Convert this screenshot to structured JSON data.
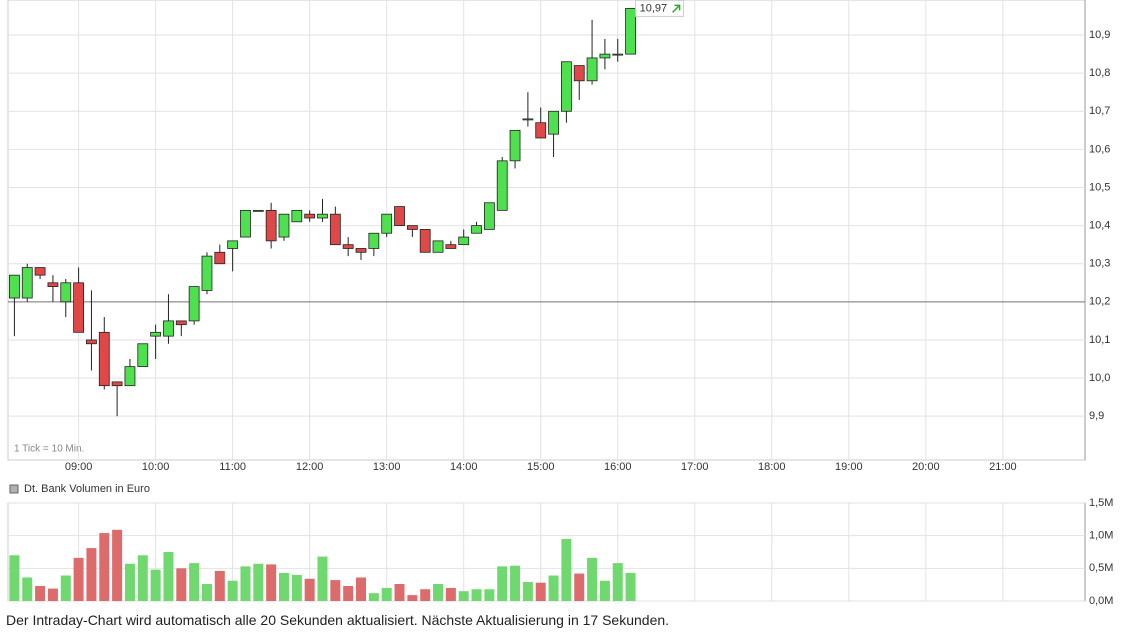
{
  "chart_data": [
    {
      "type": "candlestick",
      "annotation": "1 Tick = 10 Min.",
      "up_color": "#4ee04e",
      "down_color": "#e04848",
      "x": [
        490,
        500,
        510,
        520,
        530,
        540,
        550,
        560,
        570,
        580,
        590,
        600,
        610,
        620,
        630,
        640,
        650,
        660,
        670,
        680,
        690,
        700,
        710,
        720,
        730,
        740,
        750,
        760,
        770,
        780,
        790,
        800,
        810,
        820,
        830,
        840,
        850,
        860,
        870,
        880,
        890,
        900,
        910,
        920,
        930,
        940,
        950,
        960,
        970
      ],
      "open": [
        10.21,
        10.21,
        10.29,
        10.25,
        10.2,
        10.25,
        10.1,
        10.12,
        9.99,
        9.98,
        10.03,
        10.11,
        10.11,
        10.15,
        10.15,
        10.23,
        10.33,
        10.34,
        10.37,
        10.44,
        10.44,
        10.37,
        10.41,
        10.43,
        10.42,
        10.43,
        10.35,
        10.34,
        10.34,
        10.38,
        10.45,
        10.4,
        10.39,
        10.33,
        10.35,
        10.35,
        10.38,
        10.39,
        10.44,
        10.57,
        10.68,
        10.67,
        10.64,
        10.7,
        10.82,
        10.78,
        10.84,
        10.85,
        10.85
      ],
      "high": [
        10.27,
        10.3,
        10.29,
        10.27,
        10.26,
        10.29,
        10.23,
        10.16,
        9.99,
        10.05,
        10.09,
        10.14,
        10.22,
        10.15,
        10.24,
        10.33,
        10.35,
        10.36,
        10.44,
        10.44,
        10.46,
        10.43,
        10.44,
        10.44,
        10.47,
        10.45,
        10.37,
        10.34,
        10.38,
        10.43,
        10.45,
        10.4,
        10.39,
        10.36,
        10.36,
        10.39,
        10.41,
        10.46,
        10.58,
        10.65,
        10.75,
        10.71,
        10.7,
        10.83,
        10.82,
        10.94,
        10.89,
        10.89,
        10.97
      ],
      "low": [
        10.11,
        10.2,
        10.26,
        10.2,
        10.16,
        10.12,
        10.02,
        9.97,
        9.9,
        9.98,
        10.03,
        10.05,
        10.09,
        10.11,
        10.14,
        10.22,
        10.3,
        10.28,
        10.37,
        10.44,
        10.34,
        10.36,
        10.41,
        10.41,
        10.41,
        10.35,
        10.32,
        10.31,
        10.32,
        10.37,
        10.4,
        10.37,
        10.33,
        10.33,
        10.34,
        10.35,
        10.38,
        10.39,
        10.44,
        10.55,
        10.66,
        10.63,
        10.58,
        10.67,
        10.73,
        10.77,
        10.81,
        10.83,
        10.85
      ],
      "close": [
        10.27,
        10.29,
        10.27,
        10.24,
        10.25,
        10.12,
        10.09,
        9.98,
        9.98,
        10.03,
        10.09,
        10.12,
        10.15,
        10.14,
        10.24,
        10.32,
        10.3,
        10.36,
        10.44,
        10.44,
        10.36,
        10.43,
        10.44,
        10.42,
        10.43,
        10.35,
        10.34,
        10.33,
        10.38,
        10.43,
        10.4,
        10.39,
        10.33,
        10.36,
        10.34,
        10.37,
        10.4,
        10.46,
        10.57,
        10.65,
        10.68,
        10.63,
        10.7,
        10.83,
        10.78,
        10.84,
        10.85,
        10.85,
        10.97
      ],
      "last_price": {
        "value": 10.97,
        "label": "10,97"
      },
      "reference_line": 10.2,
      "xlim": [
        485,
        1324
      ],
      "xticks": [
        {
          "value": 540,
          "label": "09:00"
        },
        {
          "value": 600,
          "label": "10:00"
        },
        {
          "value": 660,
          "label": "11:00"
        },
        {
          "value": 720,
          "label": "12:00"
        },
        {
          "value": 780,
          "label": "13:00"
        },
        {
          "value": 840,
          "label": "14:00"
        },
        {
          "value": 900,
          "label": "15:00"
        },
        {
          "value": 960,
          "label": "16:00"
        },
        {
          "value": 1020,
          "label": "17:00"
        },
        {
          "value": 1080,
          "label": "18:00"
        },
        {
          "value": 1140,
          "label": "19:00"
        },
        {
          "value": 1200,
          "label": "20:00"
        },
        {
          "value": 1260,
          "label": "21:00"
        }
      ],
      "ylim": [
        9.785,
        10.992
      ],
      "yticks": [
        {
          "value": 9.9,
          "label": "9,9"
        },
        {
          "value": 10.0,
          "label": "10,0"
        },
        {
          "value": 10.1,
          "label": "10,1"
        },
        {
          "value": 10.2,
          "label": "10,2"
        },
        {
          "value": 10.3,
          "label": "10,3"
        },
        {
          "value": 10.4,
          "label": "10,4"
        },
        {
          "value": 10.5,
          "label": "10,5"
        },
        {
          "value": 10.6,
          "label": "10,6"
        },
        {
          "value": 10.7,
          "label": "10,7"
        },
        {
          "value": 10.8,
          "label": "10,8"
        },
        {
          "value": 10.9,
          "label": "10,9"
        }
      ],
      "grid": true
    },
    {
      "type": "bar",
      "name": "Dt. Bank Volumen in Euro",
      "legend_color": "#b0b0b0",
      "values": [
        0.7,
        0.36,
        0.23,
        0.19,
        0.39,
        0.66,
        0.81,
        1.04,
        1.09,
        0.57,
        0.7,
        0.48,
        0.75,
        0.5,
        0.58,
        0.26,
        0.46,
        0.31,
        0.53,
        0.57,
        0.56,
        0.43,
        0.4,
        0.34,
        0.68,
        0.32,
        0.23,
        0.36,
        0.12,
        0.2,
        0.26,
        0.09,
        0.18,
        0.26,
        0.2,
        0.15,
        0.18,
        0.18,
        0.53,
        0.54,
        0.29,
        0.28,
        0.39,
        0.95,
        0.42,
        0.66,
        0.31,
        0.58,
        0.43
      ],
      "ylim": [
        0,
        1.5
      ],
      "yticks": [
        {
          "value": 0,
          "label": "0,0M"
        },
        {
          "value": 0.5,
          "label": "0,5M"
        },
        {
          "value": 1.0,
          "label": "1,0M"
        },
        {
          "value": 1.5,
          "label": "1,5M"
        }
      ],
      "grid": true
    }
  ],
  "footer": "Der Intraday-Chart wird automatisch alle 20 Sekunden aktualisiert. Nächste Aktualisierung in 17 Sekunden."
}
